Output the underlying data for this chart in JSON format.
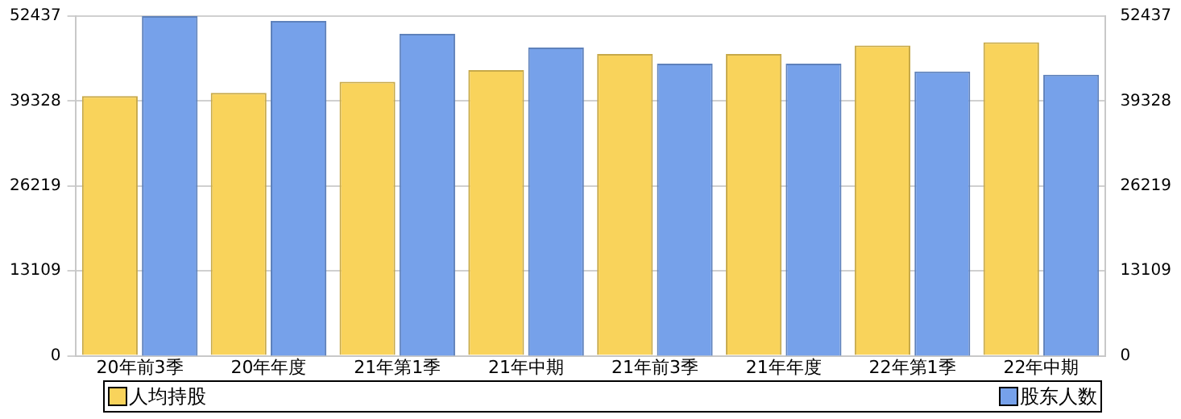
{
  "chart_data": {
    "type": "bar",
    "categories": [
      "20年前3季",
      "20年年度",
      "21年第1季",
      "21年中期",
      "21年前3季",
      "21年年度",
      "22年第1季",
      "22年中期"
    ],
    "series": [
      {
        "name": "人均持股",
        "color": "#f9d35b",
        "values": [
          40100,
          40600,
          42300,
          44100,
          46600,
          46600,
          47900,
          48400
        ]
      },
      {
        "name": "股东人数",
        "color": "#76a1ea",
        "axis": "y2",
        "values": [
          52437,
          51700,
          49700,
          47600,
          45100,
          45100,
          43900,
          43400
        ]
      }
    ],
    "ylim": [
      0,
      52437
    ],
    "yticks": [
      0,
      13109,
      26219,
      39328,
      52437
    ],
    "y2lim": [
      0,
      52437
    ],
    "y2ticks": [
      0,
      13109,
      26219,
      39328,
      52437
    ],
    "grid": "y",
    "legend": "bottom"
  }
}
